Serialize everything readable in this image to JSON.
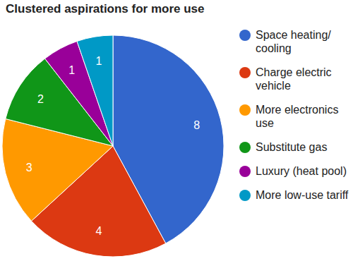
{
  "chart_data": {
    "type": "pie",
    "title": "Clustered aspirations for more use",
    "categories": [
      "Space heating/cooling",
      "Charge electric vehicle",
      "More electronics use",
      "Substitute gas",
      "Luxury (heat pool)",
      "More low-use tariff"
    ],
    "values": [
      8,
      4,
      3,
      2,
      1,
      1
    ],
    "colors": [
      "#3366cc",
      "#dc3912",
      "#ff9900",
      "#109618",
      "#990099",
      "#0099c6"
    ],
    "data_labels": true,
    "legend": "right"
  }
}
